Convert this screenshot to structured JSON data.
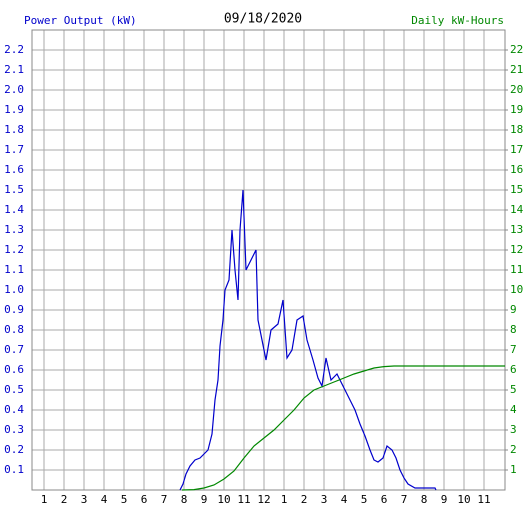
{
  "chart_data": {
    "type": "line",
    "title": "09/18/2020",
    "y_label": "Power Output (kW)",
    "y2_label": "Daily kW-Hours",
    "xlim": [
      0.4,
      24.05
    ],
    "xticks": [
      1,
      2,
      3,
      4,
      5,
      6,
      7,
      8,
      9,
      10,
      11,
      12,
      {
        "value": 13,
        "label": "1"
      },
      {
        "value": 14,
        "label": "2"
      },
      {
        "value": 15,
        "label": "3"
      },
      {
        "value": 16,
        "label": "4"
      },
      {
        "value": 17,
        "label": "5"
      },
      {
        "value": 18,
        "label": "6"
      },
      {
        "value": 19,
        "label": "7"
      },
      {
        "value": 20,
        "label": "8"
      },
      {
        "value": 21,
        "label": "9"
      },
      {
        "value": 22,
        "label": "10"
      },
      {
        "value": 23,
        "label": "11"
      }
    ],
    "ylim": [
      0,
      2.3
    ],
    "yticks": [
      0.1,
      0.2,
      0.3,
      0.4,
      0.5,
      0.6,
      0.7,
      0.8,
      0.9,
      {
        "value": 1,
        "label": "1.0"
      },
      1.1,
      1.2,
      1.3,
      1.4,
      1.5,
      1.6,
      1.7,
      1.8,
      1.9,
      {
        "value": 2,
        "label": "2.0"
      },
      2.1,
      2.2
    ],
    "y2lim": [
      0,
      23
    ],
    "y2ticks": [
      1,
      2,
      3,
      4,
      5,
      6,
      7,
      8,
      9,
      10,
      11,
      12,
      13,
      14,
      15,
      16,
      17,
      18,
      19,
      20,
      21,
      22
    ],
    "grid": true,
    "series": [
      {
        "name": "Power Output (kW)",
        "color": "#0000cc",
        "x": [
          7.8,
          7.95,
          8.1,
          8.3,
          8.55,
          8.8,
          9.2,
          9.4,
          9.55,
          9.7,
          9.8,
          9.95,
          10.05,
          10.25,
          10.4,
          10.55,
          10.7,
          10.8,
          10.95,
          11.1,
          11.35,
          11.6,
          11.7,
          11.9,
          12.1,
          12.35,
          12.7,
          12.95,
          13.15,
          13.4,
          13.65,
          13.95,
          14.15,
          14.45,
          14.7,
          14.9,
          15.1,
          15.35,
          15.65,
          16.15,
          16.3,
          16.55,
          16.8,
          17.05,
          17.3,
          17.5,
          17.7,
          17.95,
          18.15,
          18.4,
          18.6,
          18.8,
          19.0,
          19.2,
          19.55,
          20.55,
          20.6
        ],
        "values": [
          0,
          0.03,
          0.08,
          0.12,
          0.15,
          0.16,
          0.2,
          0.28,
          0.45,
          0.55,
          0.72,
          0.85,
          1.0,
          1.05,
          1.3,
          1.1,
          0.95,
          1.3,
          1.5,
          1.1,
          1.15,
          1.2,
          0.85,
          0.75,
          0.65,
          0.8,
          0.83,
          0.95,
          0.66,
          0.7,
          0.85,
          0.87,
          0.75,
          0.65,
          0.56,
          0.52,
          0.66,
          0.55,
          0.58,
          0.48,
          0.45,
          0.4,
          0.33,
          0.27,
          0.2,
          0.15,
          0.14,
          0.16,
          0.22,
          0.2,
          0.16,
          0.1,
          0.06,
          0.03,
          0.01,
          0.01,
          0
        ]
      },
      {
        "name": "Daily kW-Hours",
        "color": "#008800",
        "axis": "y2",
        "x": [
          7.9,
          8.5,
          9.0,
          9.5,
          10.0,
          10.5,
          11.0,
          11.5,
          12.0,
          12.5,
          13.0,
          13.5,
          14.0,
          14.5,
          15.0,
          15.5,
          16.0,
          16.5,
          17.0,
          17.5,
          18.0,
          18.5,
          19.0,
          24.05
        ],
        "values": [
          0,
          0.02,
          0.1,
          0.25,
          0.55,
          0.95,
          1.6,
          2.2,
          2.6,
          3.0,
          3.5,
          4.0,
          4.6,
          5.0,
          5.2,
          5.4,
          5.6,
          5.8,
          5.95,
          6.1,
          6.17,
          6.2,
          6.2,
          6.2
        ]
      }
    ]
  }
}
